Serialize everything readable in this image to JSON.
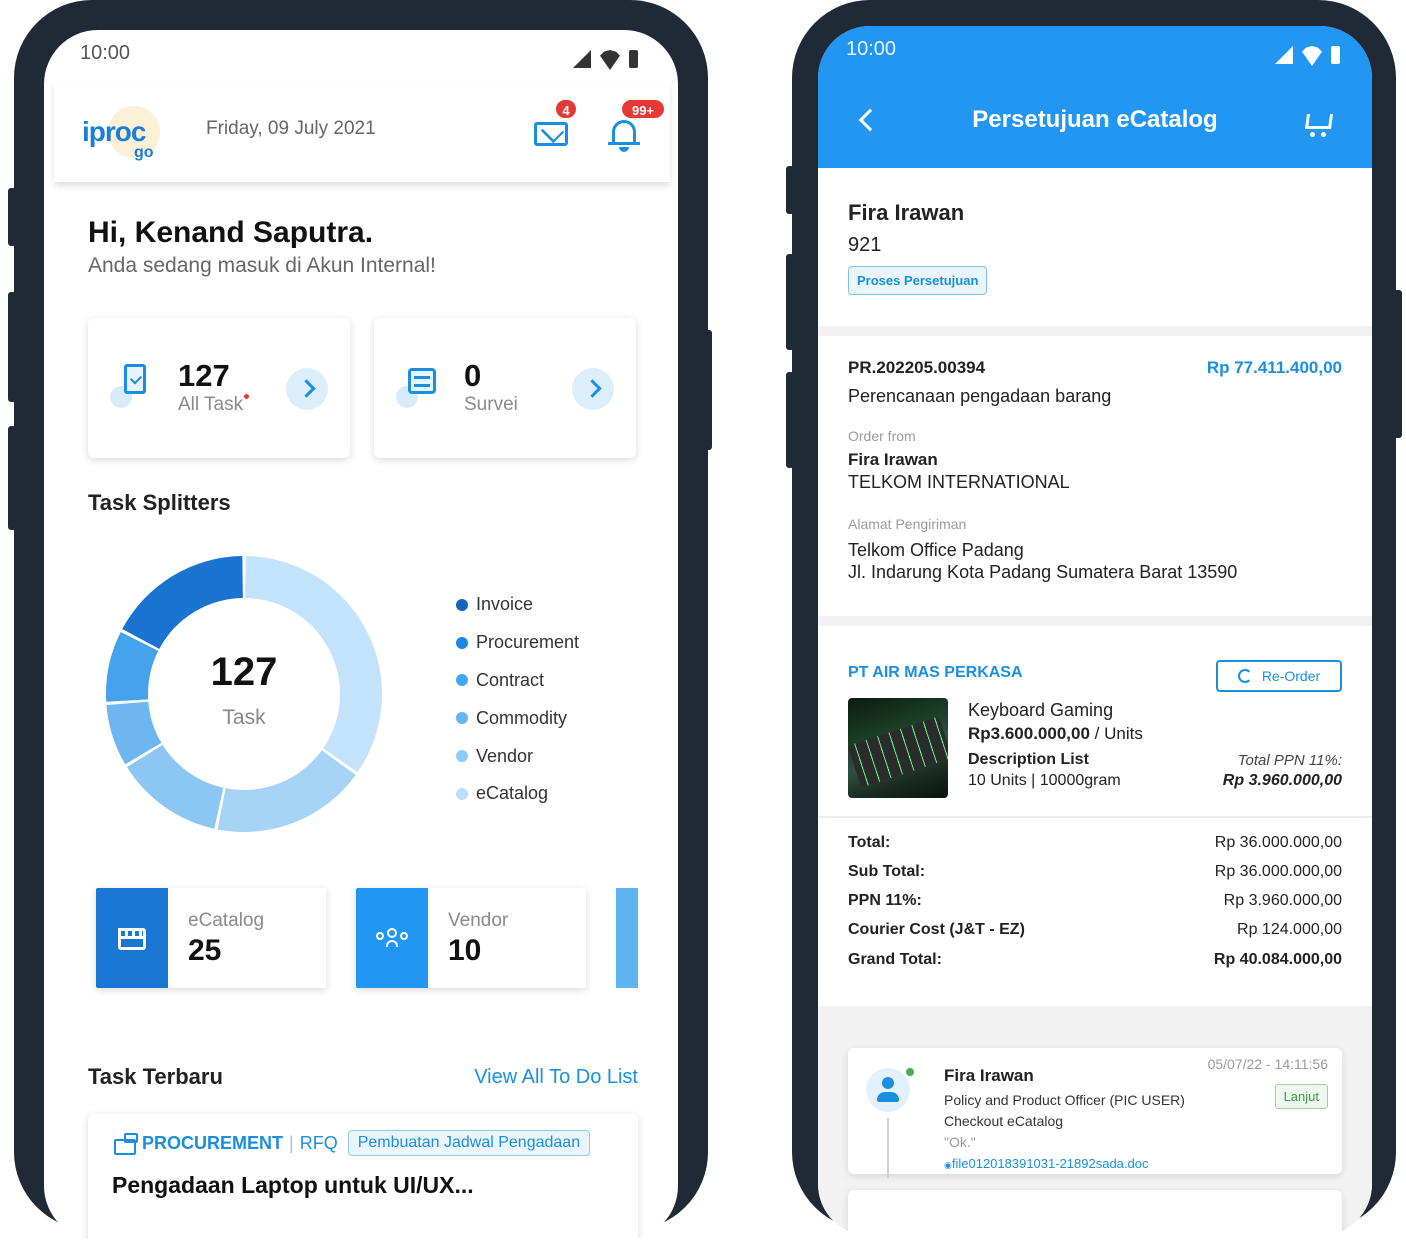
{
  "left": {
    "status": {
      "time": "10:00"
    },
    "header": {
      "logo": "iproc",
      "logo_sub": "go",
      "date": "Friday, 09 July 2021",
      "mail_badge": "4",
      "notif_badge": "99+"
    },
    "greeting": {
      "title": "Hi, Kenand Saputra.",
      "subtitle": "Anda sedang masuk di Akun Internal!"
    },
    "stats": [
      {
        "value": "127",
        "label": "All Task"
      },
      {
        "value": "0",
        "label": "Survei"
      }
    ],
    "splitter": {
      "title": "Task Splitters",
      "center_value": "127",
      "center_label": "Task",
      "legend": [
        {
          "label": "Invoice",
          "color": "#1565c0"
        },
        {
          "label": "Procurement",
          "color": "#1e88e5"
        },
        {
          "label": "Contract",
          "color": "#42a5f5"
        },
        {
          "label": "Commodity",
          "color": "#64b5f6"
        },
        {
          "label": "Vendor",
          "color": "#90caf9"
        },
        {
          "label": "eCatalog",
          "color": "#bbdefb"
        }
      ]
    },
    "chart_data": {
      "type": "pie",
      "categories": [
        "eCatalog",
        "Vendor",
        "Commodity",
        "Contract",
        "Procurement",
        "Invoice"
      ],
      "values": [
        0.32,
        0.17,
        0.12,
        0.07,
        0.08,
        0.16
      ],
      "colors": [
        "#c3e3fc",
        "#a6d4f7",
        "#8cc7f4",
        "#6db6f0",
        "#45a2ec",
        "#1a73d0"
      ]
    },
    "modules": [
      {
        "label": "eCatalog",
        "value": "25",
        "color": "#1976d2"
      },
      {
        "label": "Vendor",
        "value": "10",
        "color": "#2196f3"
      }
    ],
    "latest": {
      "title": "Task Terbaru",
      "view_all": "View All To Do List",
      "task": {
        "category": "PROCUREMENT",
        "separator": "|",
        "type": "RFQ",
        "tag": "Pembuatan Jadwal Pengadaan",
        "title": "Pengadaan Laptop untuk UI/UX..."
      }
    }
  },
  "right": {
    "status": {
      "time": "10:00"
    },
    "title": "Persetujuan eCatalog",
    "requester": {
      "name": "Fira Irawan",
      "id": "921",
      "status": "Proses Persetujuan"
    },
    "order": {
      "number": "PR.202205.00394",
      "amount": "Rp 77.411.400,00",
      "description": "Perencanaan pengadaan barang",
      "from_label": "Order from",
      "from_name": "Fira Irawan",
      "from_company": "TELKOM INTERNATIONAL",
      "address_label": "Alamat Pengiriman",
      "address_line1": "Telkom Office Padang",
      "address_line2": "Jl. Indarung Kota Padang Sumatera Barat 13590"
    },
    "vendor": {
      "name": "PT AIR MAS PERKASA",
      "reorder": "Re-Order",
      "product_name": "Keyboard Gaming",
      "price": "Rp3.600.000,00",
      "price_unit": " / Units",
      "desc_label": "Description List",
      "desc": "10 Units | 10000gram",
      "ppn_label": "Total PPN 11%:",
      "ppn_value": "Rp 3.960.000,00"
    },
    "summary": [
      {
        "k": "Total:",
        "v": "Rp 36.000.000,00"
      },
      {
        "k": "Sub Total:",
        "v": "Rp 36.000.000,00"
      },
      {
        "k": "PPN 11%:",
        "v": "Rp 3.960.000,00"
      },
      {
        "k": "Courier Cost (J&T - EZ)",
        "v": "Rp 124.000,00"
      },
      {
        "k": "Grand Total:",
        "v": "Rp 40.084.000,00"
      }
    ],
    "history": {
      "time": "05/07/22 - 14:11:56",
      "name": "Fira Irawan",
      "role": "Policy and Product Officer (PIC USER)",
      "action": "Checkout eCatalog",
      "note": "\"Ok.\"",
      "file": "file012018391031-21892sada.doc",
      "status": "Lanjut"
    }
  }
}
